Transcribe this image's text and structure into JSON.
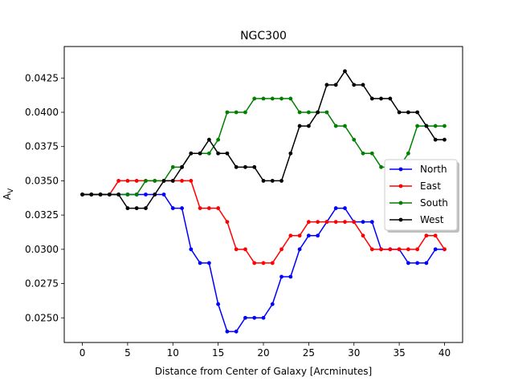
{
  "chart_data": {
    "type": "line",
    "title": "NGC300",
    "xlabel": "Distance from Center of Galaxy [Arcminutes]",
    "ylabel_main": "A",
    "ylabel_sub": "V",
    "xlim": [
      -2,
      42
    ],
    "ylim": [
      0.0232,
      0.0448
    ],
    "xticks": [
      0,
      5,
      10,
      15,
      20,
      25,
      30,
      35,
      40
    ],
    "yticks": [
      0.025,
      0.0275,
      0.03,
      0.0325,
      0.035,
      0.0375,
      0.04,
      0.0425
    ],
    "ytick_labels": [
      "0.0250",
      "0.0275",
      "0.0300",
      "0.0325",
      "0.0350",
      "0.0375",
      "0.0400",
      "0.0425"
    ],
    "grid": false,
    "legend_position": "center-right",
    "x": [
      0,
      1,
      2,
      3,
      4,
      5,
      6,
      7,
      8,
      9,
      10,
      11,
      12,
      13,
      14,
      15,
      16,
      17,
      18,
      19,
      20,
      21,
      22,
      23,
      24,
      25,
      26,
      27,
      28,
      29,
      30,
      31,
      32,
      33,
      34,
      35,
      36,
      37,
      38,
      39,
      40
    ],
    "series": [
      {
        "name": "North",
        "color": "#0000ff",
        "values": [
          0.034,
          0.034,
          0.034,
          0.034,
          0.034,
          0.034,
          0.034,
          0.034,
          0.034,
          0.034,
          0.033,
          0.033,
          0.03,
          0.029,
          0.029,
          0.026,
          0.024,
          0.024,
          0.025,
          0.025,
          0.025,
          0.026,
          0.028,
          0.028,
          0.03,
          0.031,
          0.031,
          0.032,
          0.033,
          0.033,
          0.032,
          0.032,
          0.032,
          0.03,
          0.03,
          0.03,
          0.029,
          0.029,
          0.029,
          0.03,
          0.03
        ]
      },
      {
        "name": "East",
        "color": "#ff0000",
        "values": [
          0.034,
          0.034,
          0.034,
          0.034,
          0.035,
          0.035,
          0.035,
          0.035,
          0.035,
          0.035,
          0.035,
          0.035,
          0.035,
          0.033,
          0.033,
          0.033,
          0.032,
          0.03,
          0.03,
          0.029,
          0.029,
          0.029,
          0.03,
          0.031,
          0.031,
          0.032,
          0.032,
          0.032,
          0.032,
          0.032,
          0.032,
          0.031,
          0.03,
          0.03,
          0.03,
          0.03,
          0.03,
          0.03,
          0.031,
          0.031,
          0.03
        ]
      },
      {
        "name": "South",
        "color": "#008000",
        "values": [
          0.034,
          0.034,
          0.034,
          0.034,
          0.034,
          0.034,
          0.034,
          0.035,
          0.035,
          0.035,
          0.036,
          0.036,
          0.037,
          0.037,
          0.037,
          0.038,
          0.04,
          0.04,
          0.04,
          0.041,
          0.041,
          0.041,
          0.041,
          0.041,
          0.04,
          0.04,
          0.04,
          0.04,
          0.039,
          0.039,
          0.038,
          0.037,
          0.037,
          0.036,
          0.036,
          0.036,
          0.037,
          0.039,
          0.039,
          0.039,
          0.039
        ]
      },
      {
        "name": "West",
        "color": "#000000",
        "values": [
          0.034,
          0.034,
          0.034,
          0.034,
          0.034,
          0.033,
          0.033,
          0.033,
          0.034,
          0.035,
          0.035,
          0.036,
          0.037,
          0.037,
          0.038,
          0.037,
          0.037,
          0.036,
          0.036,
          0.036,
          0.035,
          0.035,
          0.035,
          0.037,
          0.039,
          0.039,
          0.04,
          0.042,
          0.042,
          0.043,
          0.042,
          0.042,
          0.041,
          0.041,
          0.041,
          0.04,
          0.04,
          0.04,
          0.039,
          0.038,
          0.038
        ]
      }
    ]
  }
}
